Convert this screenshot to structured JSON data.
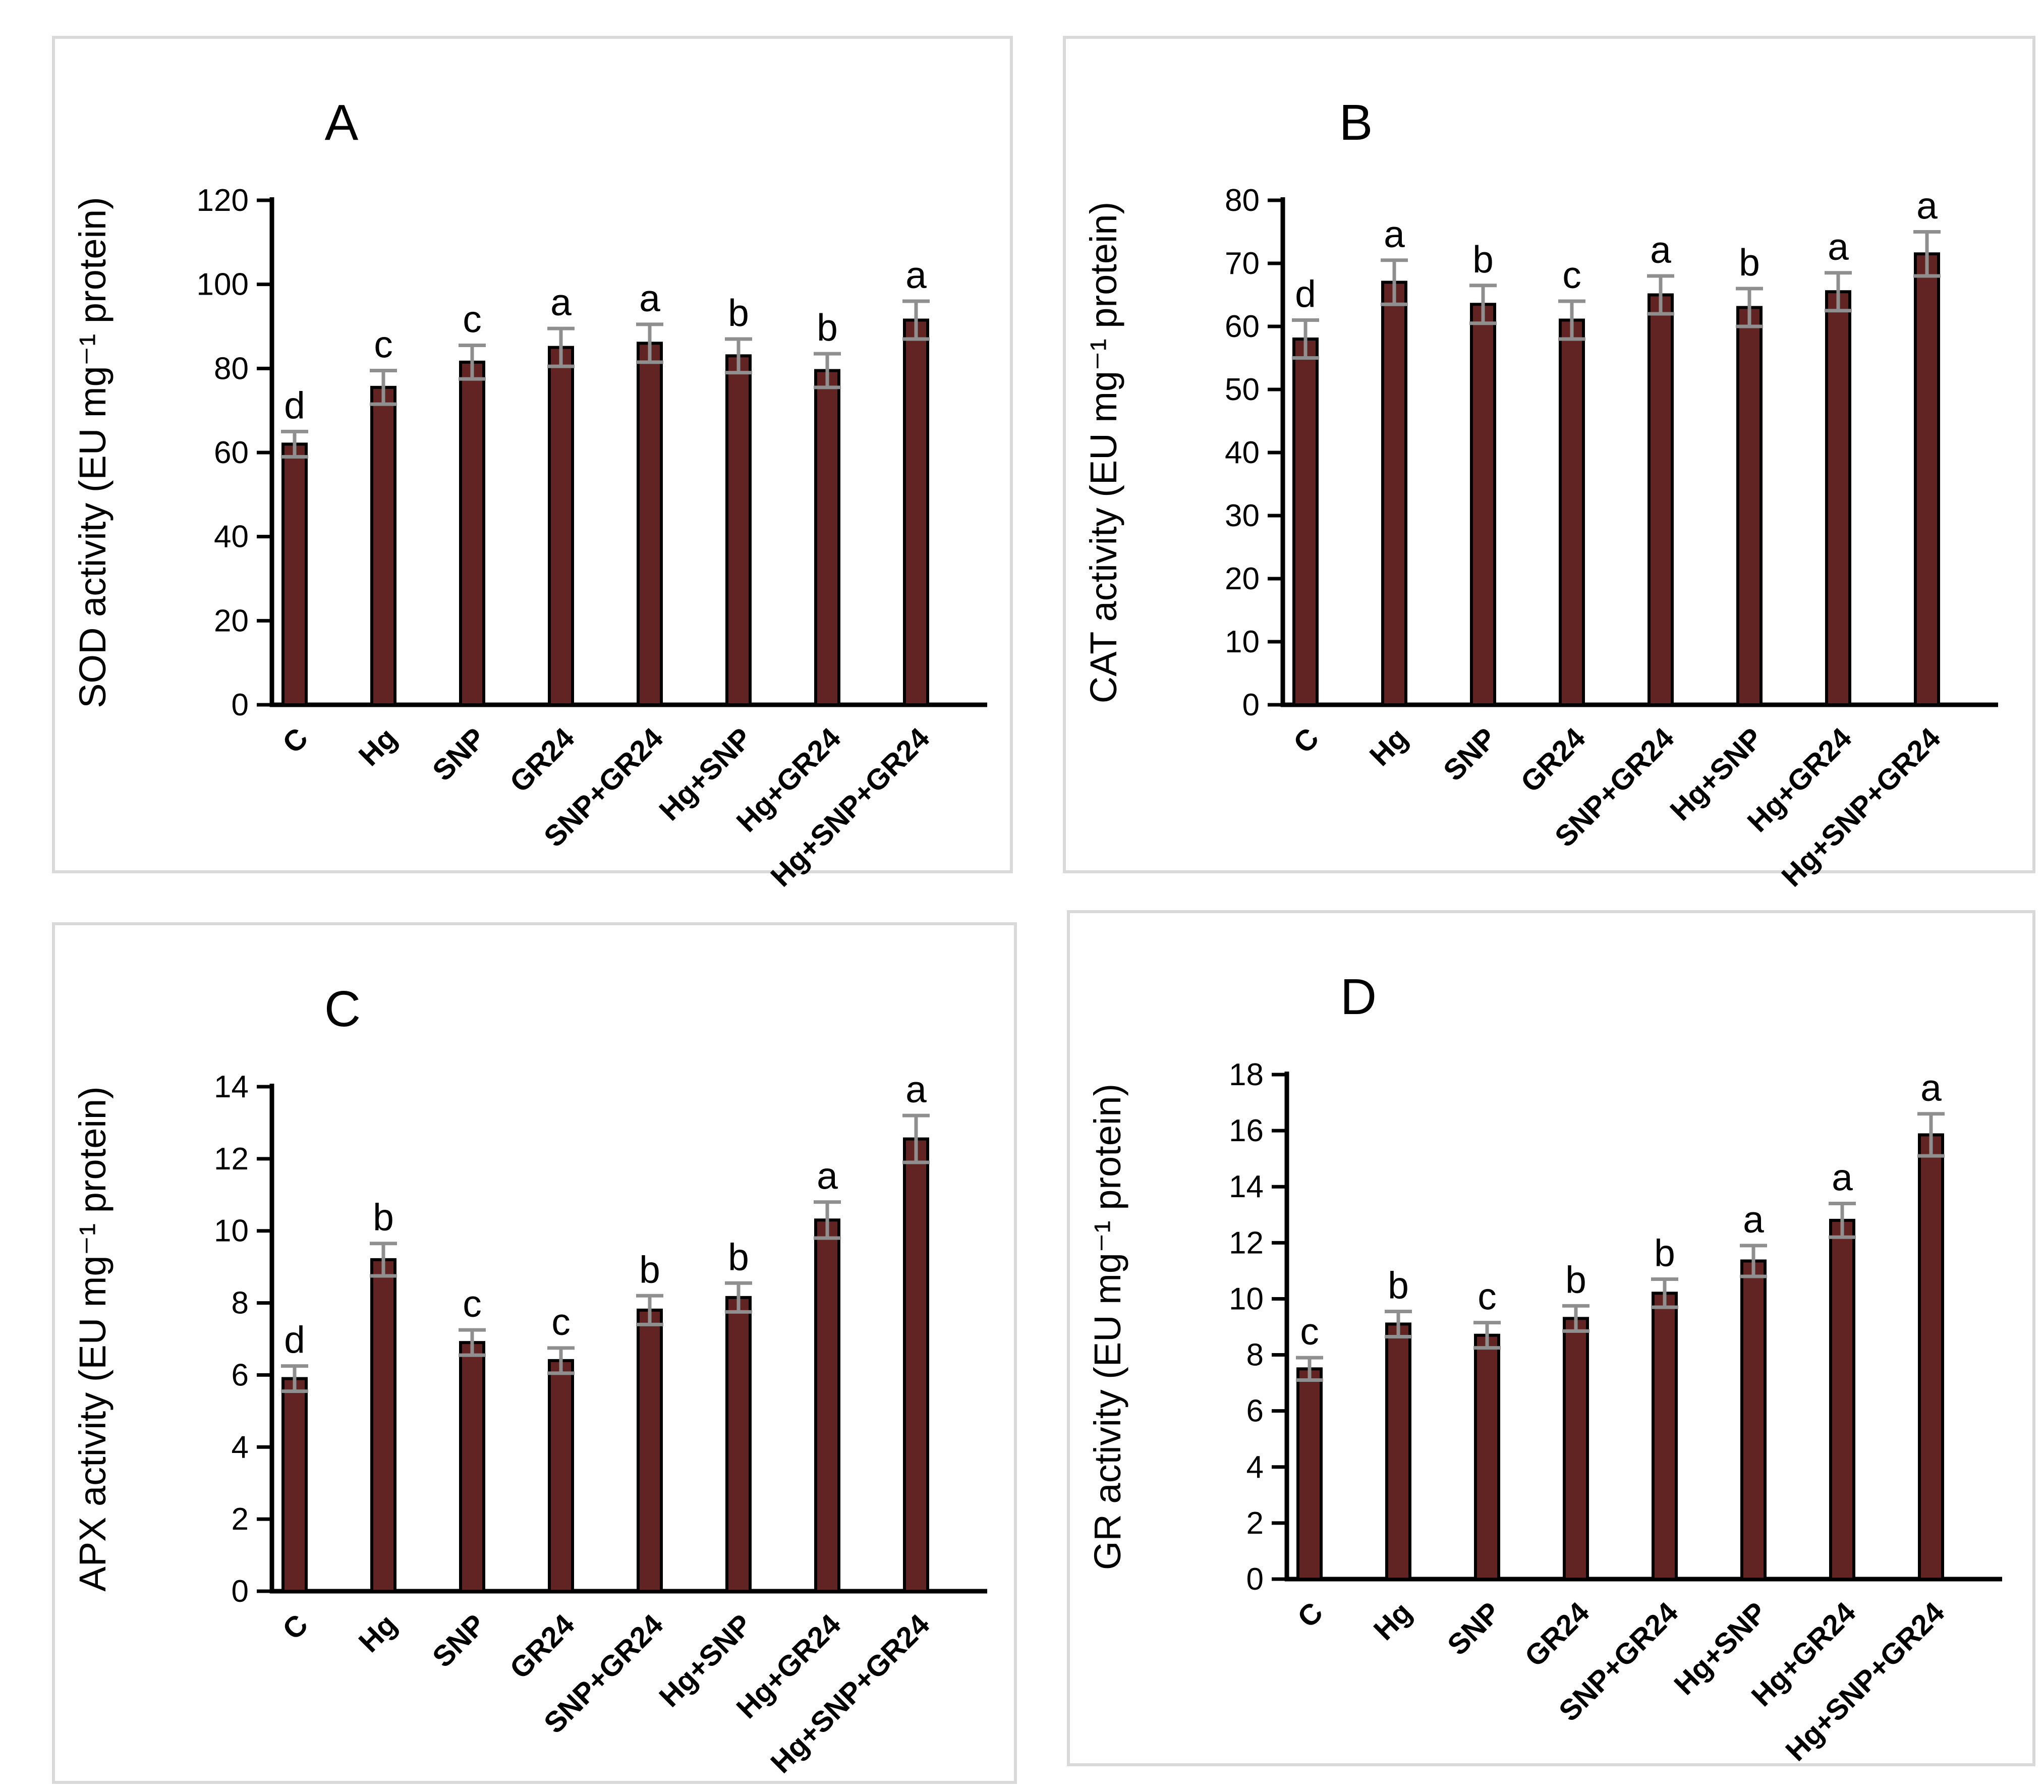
{
  "figure": {
    "background": "#ffffff",
    "panel_border_color": "#d9d9d9",
    "bar_fill": "#622423",
    "bar_stroke": "#000000",
    "error_bar_color": "#8f8f8f",
    "axis_color": "#000000",
    "text_color": "#000000"
  },
  "chart_data": [
    {
      "type": "bar",
      "panel_label": "A",
      "ylabel": "SOD activity  (EU mg⁻¹ protein)",
      "xlabel": "",
      "categories": [
        "C",
        "Hg",
        "SNP",
        "GR24",
        "SNP+GR24",
        "Hg+SNP",
        "Hg+GR24",
        "Hg+SNP+GR24"
      ],
      "values": [
        62,
        75.5,
        81.5,
        85,
        86,
        83,
        79.5,
        91.5
      ],
      "errors": [
        3,
        4,
        4,
        4.5,
        4.5,
        4,
        4,
        4.5
      ],
      "sig_letters": [
        "d",
        "c",
        "c",
        "a",
        "a",
        "b",
        "b",
        "a"
      ],
      "ylim": [
        0,
        120
      ],
      "ytick_step": 20,
      "yticks": [
        0,
        20,
        40,
        60,
        80,
        100,
        120
      ],
      "grid": false,
      "legend": false
    },
    {
      "type": "bar",
      "panel_label": "B",
      "ylabel": "CAT activity (EU mg⁻¹ protein)",
      "xlabel": "",
      "categories": [
        "C",
        "Hg",
        "SNP",
        "GR24",
        "SNP+GR24",
        "Hg+SNP",
        "Hg+GR24",
        "Hg+SNP+GR24"
      ],
      "values": [
        58,
        67,
        63.5,
        61,
        65,
        63,
        65.5,
        71.5
      ],
      "errors": [
        3,
        3.5,
        3,
        3,
        3,
        3,
        3,
        3.5
      ],
      "sig_letters": [
        "d",
        "a",
        "b",
        "c",
        "a",
        "b",
        "a",
        "a"
      ],
      "ylim": [
        0,
        80
      ],
      "ytick_step": 10,
      "yticks": [
        0,
        10,
        20,
        30,
        40,
        50,
        60,
        70,
        80
      ],
      "grid": false,
      "legend": false
    },
    {
      "type": "bar",
      "panel_label": "C",
      "ylabel": "APX activity (EU mg⁻¹ protein)",
      "xlabel": "",
      "categories": [
        "C",
        "Hg",
        "SNP",
        "GR24",
        "SNP+GR24",
        "Hg+SNP",
        "Hg+GR24",
        "Hg+SNP+GR24"
      ],
      "values": [
        5.9,
        9.2,
        6.9,
        6.4,
        7.8,
        8.15,
        10.3,
        12.55
      ],
      "errors": [
        0.35,
        0.45,
        0.35,
        0.35,
        0.4,
        0.4,
        0.5,
        0.65
      ],
      "sig_letters": [
        "d",
        "b",
        "c",
        "c",
        "b",
        "b",
        "a",
        "a"
      ],
      "ylim": [
        0,
        14
      ],
      "ytick_step": 2,
      "yticks": [
        0,
        2,
        4,
        6,
        8,
        10,
        12,
        14
      ],
      "grid": false,
      "legend": false
    },
    {
      "type": "bar",
      "panel_label": "D",
      "ylabel": "GR activity (EU mg⁻¹ protein)",
      "xlabel": "",
      "categories": [
        "C",
        "Hg",
        "SNP",
        "GR24",
        "SNP+GR24",
        "Hg+SNP",
        "Hg+GR24",
        "Hg+SNP+GR24"
      ],
      "values": [
        7.5,
        9.1,
        8.7,
        9.3,
        10.2,
        11.35,
        12.8,
        15.85
      ],
      "errors": [
        0.4,
        0.45,
        0.45,
        0.45,
        0.5,
        0.55,
        0.6,
        0.75
      ],
      "sig_letters": [
        "c",
        "b",
        "c",
        "b",
        "b",
        "a",
        "a",
        "a"
      ],
      "ylim": [
        0,
        18
      ],
      "ytick_step": 2,
      "yticks": [
        0,
        2,
        4,
        6,
        8,
        10,
        12,
        14,
        16,
        18
      ],
      "grid": false,
      "legend": false
    }
  ]
}
